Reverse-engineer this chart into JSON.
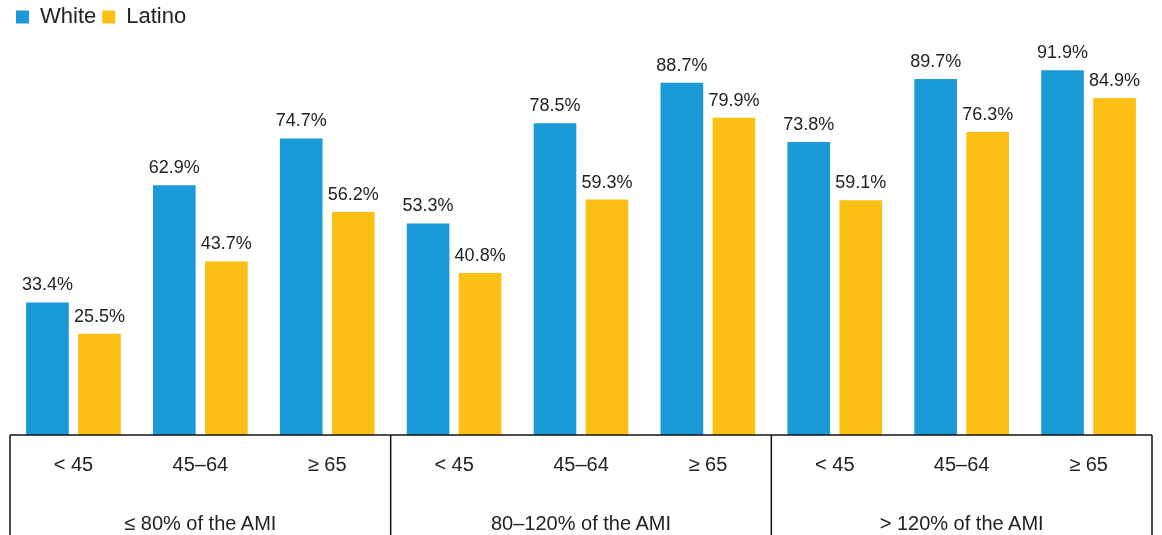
{
  "chart_data": {
    "type": "bar",
    "categories": [
      "< 45",
      "45–64",
      "≥ 65",
      "< 45",
      "45–64",
      "≥ 65",
      "< 45",
      "45–64",
      "≥ 65"
    ],
    "series": [
      {
        "name": "White",
        "color": "#1a9ad6",
        "values": [
          33.4,
          62.9,
          74.7,
          53.3,
          78.5,
          88.7,
          73.8,
          89.7,
          91.9
        ],
        "value_labels": [
          "33.4%",
          "62.9%",
          "74.7%",
          "53.3%",
          "78.5%",
          "88.7%",
          "73.8%",
          "89.7%",
          "91.9%"
        ]
      },
      {
        "name": "Latino",
        "color": "#fcc014",
        "values": [
          25.5,
          43.7,
          56.2,
          40.8,
          59.3,
          79.9,
          59.1,
          76.3,
          84.9
        ],
        "value_labels": [
          "25.5%",
          "43.7%",
          "56.2%",
          "40.8%",
          "59.3%",
          "79.9%",
          "59.1%",
          "76.3%",
          "84.9%"
        ]
      }
    ],
    "annotations": [
      "≤ 80% of the AMI",
      "80–120% of the AMI",
      "> 120% of the AMI"
    ],
    "legend": "top left",
    "grid": false,
    "tick_labels": "x"
  }
}
